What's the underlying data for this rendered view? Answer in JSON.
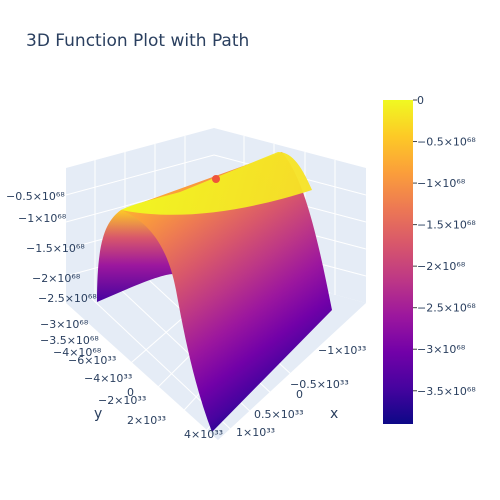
{
  "chart_data": {
    "type": "surface",
    "title": "3D Function Plot with Path",
    "axes": {
      "x": {
        "title": "x",
        "ticks": [
          "−1×10³³",
          "−0.5×10³³",
          "0",
          "0.5×10³³",
          "1×10³³"
        ]
      },
      "y": {
        "title": "y",
        "ticks": [
          "−6×10³³",
          "−4×10³³",
          "−2×10³³",
          "0",
          "2×10³³",
          "4×10³³"
        ]
      },
      "z": {
        "title": "",
        "ticks": [
          "−4×10⁶⁸",
          "−3.5×10⁶⁸",
          "−3×10⁶⁸",
          "−2.5×10⁶⁸",
          "−2×10⁶⁸",
          "−1.5×10⁶⁸",
          "−1×10⁶⁸",
          "−0.5×10⁶⁸"
        ]
      }
    },
    "colorbar": {
      "range": [
        -3.9e+68,
        0
      ],
      "ticks": [
        {
          "label": "0",
          "value": 0
        },
        {
          "label": "−0.5×10⁶⁸",
          "value": -5e+67
        },
        {
          "label": "−1×10⁶⁸",
          "value": -1e+68
        },
        {
          "label": "−1.5×10⁶⁸",
          "value": -1.5e+68
        },
        {
          "label": "−2×10⁶⁸",
          "value": -2e+68
        },
        {
          "label": "−2.5×10⁶⁸",
          "value": -2.5e+68
        },
        {
          "label": "−3×10⁶⁸",
          "value": -3e+68
        },
        {
          "label": "−3.5×10⁶⁸",
          "value": -3.5e+68
        }
      ],
      "colorscale": [
        "#0d0887",
        "#46039f",
        "#7201a8",
        "#9c179e",
        "#bd3786",
        "#d8576b",
        "#ed7953",
        "#fb9f3a",
        "#fdca26",
        "#f0f921"
      ]
    },
    "path_marker": {
      "color": "#ef553b"
    },
    "scene_background": "#e5ecf6"
  }
}
